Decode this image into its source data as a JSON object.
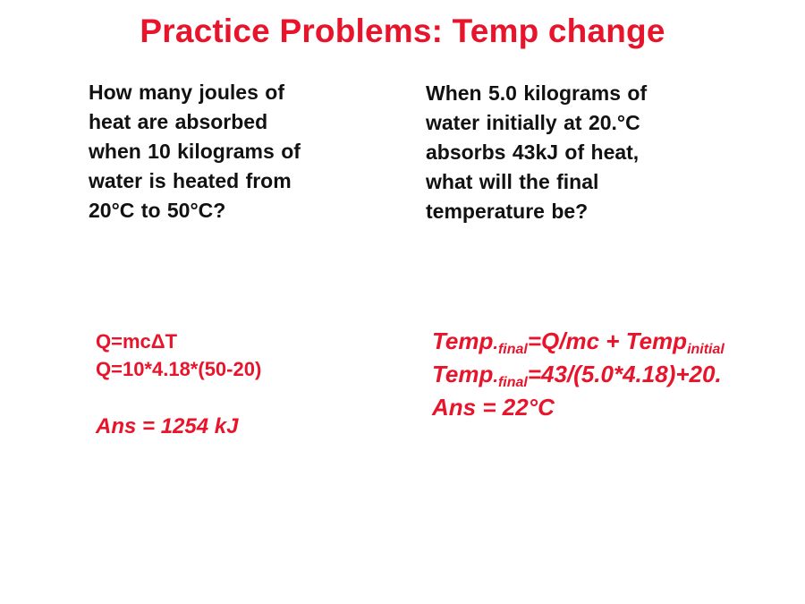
{
  "title": "Practice Problems: Temp change",
  "left": {
    "question_lines": [
      "How many joules of",
      "heat are absorbed",
      "when 10 kilograms of",
      "water is heated from",
      "20°C to 50°C?"
    ],
    "formula": "Q=mcΔT",
    "substitution": "Q=10*4.18*(50-20)",
    "answer": "Ans = 1254 kJ"
  },
  "right": {
    "question_lines": [
      "When 5.0 kilograms of",
      "water initially at 20.°C",
      "absorbs 43kJ of heat,",
      "what will the final",
      "temperature be?"
    ],
    "formula": {
      "lhs_base": "Temp",
      "lhs_dot": ".",
      "lhs_sub": "final",
      "rhs": "=Q/mc + Temp",
      "rhs_sub": "initial"
    },
    "substitution": {
      "lhs_base": "Temp",
      "lhs_dot": ".",
      "lhs_sub": "final",
      "rhs": "=43/(5.0*4.18)+20."
    },
    "answer": "Ans = 22°C"
  }
}
